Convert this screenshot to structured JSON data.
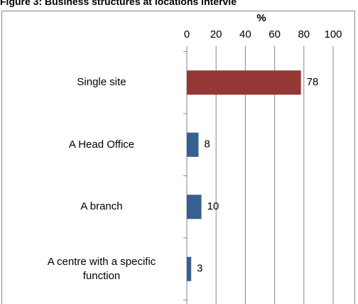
{
  "chart_data": {
    "type": "bar",
    "orientation": "horizontal",
    "title": "Figure 3: Business structures at locations intervie",
    "x_label": "%",
    "categories": [
      "Single site",
      "A Head Office",
      "A branch",
      "A centre with a specific function"
    ],
    "values": [
      78,
      8,
      10,
      3
    ],
    "colors": [
      "#953735",
      "#376092",
      "#376092",
      "#376092"
    ],
    "xlim": [
      0,
      100
    ],
    "xticks": [
      0,
      20,
      40,
      60,
      80,
      100
    ],
    "grid": true
  }
}
